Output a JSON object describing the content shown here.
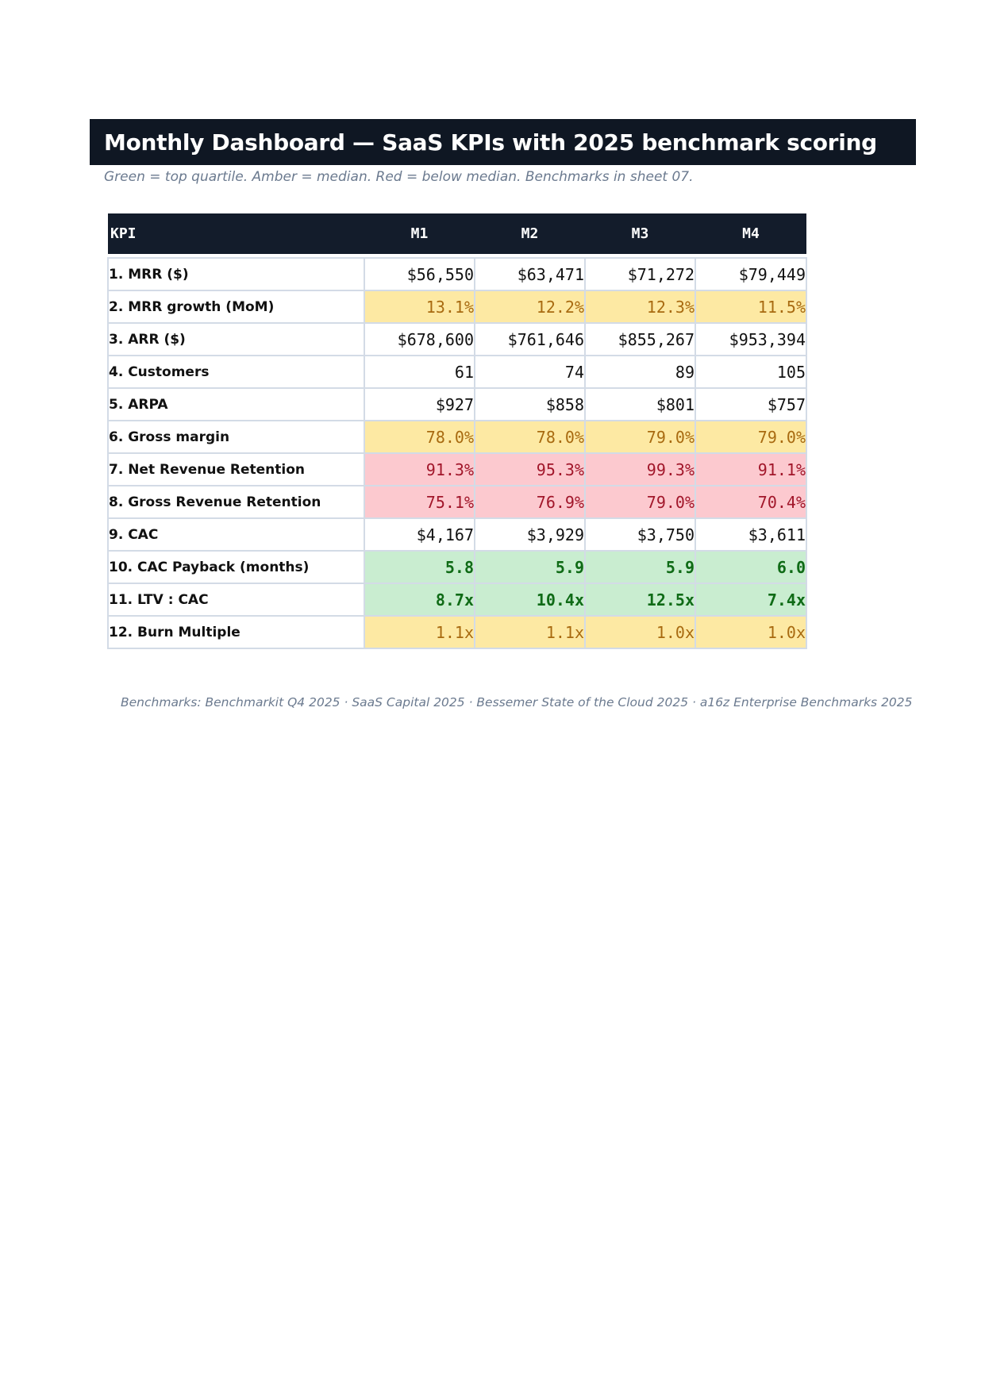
{
  "document": {
    "title": "Monthly Dashboard — SaaS KPIs with 2025 benchmark scoring",
    "subtitle": "Green = top quartile. Amber = median. Red = below median. Benchmarks in sheet 07.",
    "footer": "Benchmarks: Benchmarkit Q4 2025 · SaaS Capital 2025 · Bessemer State of the Cloud 2025 · a16z Enterprise Benchmarks 2025"
  },
  "colors": {
    "header_bg": "#0f1723",
    "top_quartile": "#c9edd0",
    "median": "#fde9a3",
    "below_median": "#fcc9cf"
  },
  "table": {
    "headers": [
      "KPI",
      "M1",
      "M2",
      "M3",
      "M4"
    ],
    "rows": [
      {
        "label": "1. MRR ($)",
        "status": "neutral",
        "values": [
          "$56,550",
          "$63,471",
          "$71,272",
          "$79,449"
        ]
      },
      {
        "label": "2. MRR growth (MoM)",
        "status": "amber",
        "values": [
          "13.1%",
          "12.2%",
          "12.3%",
          "11.5%"
        ]
      },
      {
        "label": "3. ARR ($)",
        "status": "neutral",
        "values": [
          "$678,600",
          "$761,646",
          "$855,267",
          "$953,394"
        ]
      },
      {
        "label": "4. Customers",
        "status": "neutral",
        "values": [
          "61",
          "74",
          "89",
          "105"
        ]
      },
      {
        "label": "5. ARPA",
        "status": "neutral",
        "values": [
          "$927",
          "$858",
          "$801",
          "$757"
        ]
      },
      {
        "label": "6. Gross margin",
        "status": "amber",
        "values": [
          "78.0%",
          "78.0%",
          "79.0%",
          "79.0%"
        ]
      },
      {
        "label": "7. Net Revenue Retention",
        "status": "red",
        "values": [
          "91.3%",
          "95.3%",
          "99.3%",
          "91.1%"
        ]
      },
      {
        "label": "8. Gross Revenue Retention",
        "status": "red",
        "values": [
          "75.1%",
          "76.9%",
          "79.0%",
          "70.4%"
        ]
      },
      {
        "label": "9. CAC",
        "status": "neutral",
        "values": [
          "$4,167",
          "$3,929",
          "$3,750",
          "$3,611"
        ]
      },
      {
        "label": "10. CAC Payback (months)",
        "status": "green",
        "values": [
          "5.8",
          "5.9",
          "5.9",
          "6.0"
        ]
      },
      {
        "label": "11. LTV : CAC",
        "status": "green",
        "values": [
          "8.7x",
          "10.4x",
          "12.5x",
          "7.4x"
        ]
      },
      {
        "label": "12. Burn Multiple",
        "status": "amber",
        "values": [
          "1.1x",
          "1.1x",
          "1.0x",
          "1.0x"
        ]
      }
    ]
  }
}
